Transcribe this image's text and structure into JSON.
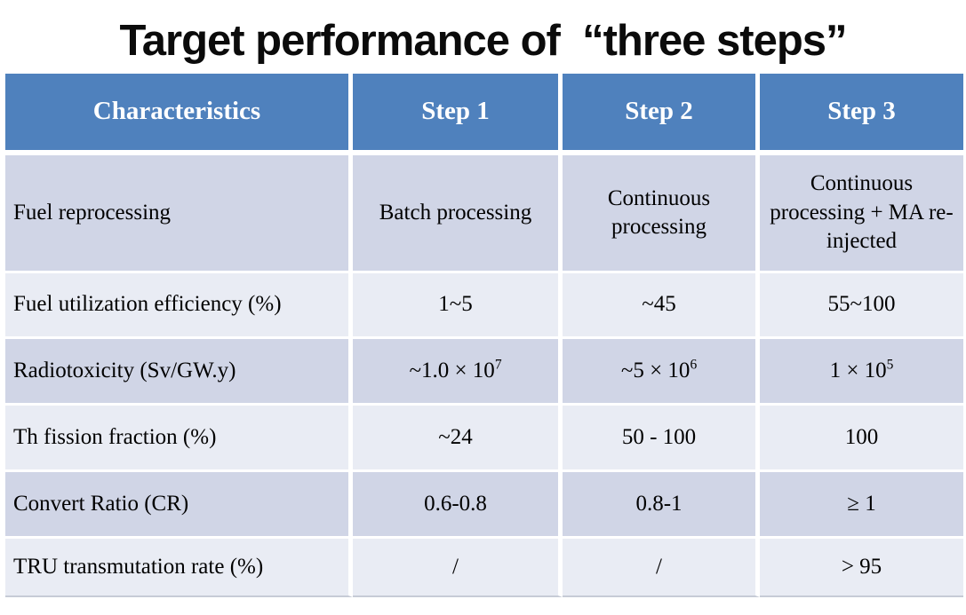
{
  "title": "Target performance of  “three steps”",
  "colors": {
    "header_bg": "#4f81bd",
    "header_text": "#ffffff",
    "band_dark": "#d0d5e6",
    "band_light": "#e9ecf4",
    "body_text": "#000000",
    "page_bg": "#ffffff",
    "table_bottom_border": "#c6cbd6"
  },
  "table": {
    "columns": [
      "Characteristics",
      "Step 1",
      "Step 2",
      "Step 3"
    ],
    "rows": [
      {
        "label": "Fuel reprocessing",
        "step1": {
          "text": "Batch processing"
        },
        "step2": {
          "text": "Continuous processing"
        },
        "step3": {
          "text": "Continuous processing + MA re-injected"
        }
      },
      {
        "label": "Fuel utilization efficiency (%)",
        "step1": {
          "text": "1~5"
        },
        "step2": {
          "text": "~45"
        },
        "step3": {
          "text": "55~100"
        }
      },
      {
        "label": "Radiotoxicity (Sv/GW.y)",
        "step1": {
          "text": "~1.0 × 10",
          "sup": "7"
        },
        "step2": {
          "text": "~5 × 10",
          "sup": "6"
        },
        "step3": {
          "text": "1 × 10",
          "sup": "5"
        }
      },
      {
        "label": "Th fission fraction (%)",
        "step1": {
          "text": "~24"
        },
        "step2": {
          "text": "50 - 100"
        },
        "step3": {
          "text": "100"
        }
      },
      {
        "label": "Convert Ratio (CR)",
        "step1": {
          "text": "0.6-0.8"
        },
        "step2": {
          "text": "0.8-1"
        },
        "step3": {
          "text": "≥ 1"
        }
      },
      {
        "label": "TRU transmutation rate (%)",
        "step1": {
          "text": "/"
        },
        "step2": {
          "text": "/"
        },
        "step3": {
          "text": "> 95"
        }
      }
    ]
  }
}
